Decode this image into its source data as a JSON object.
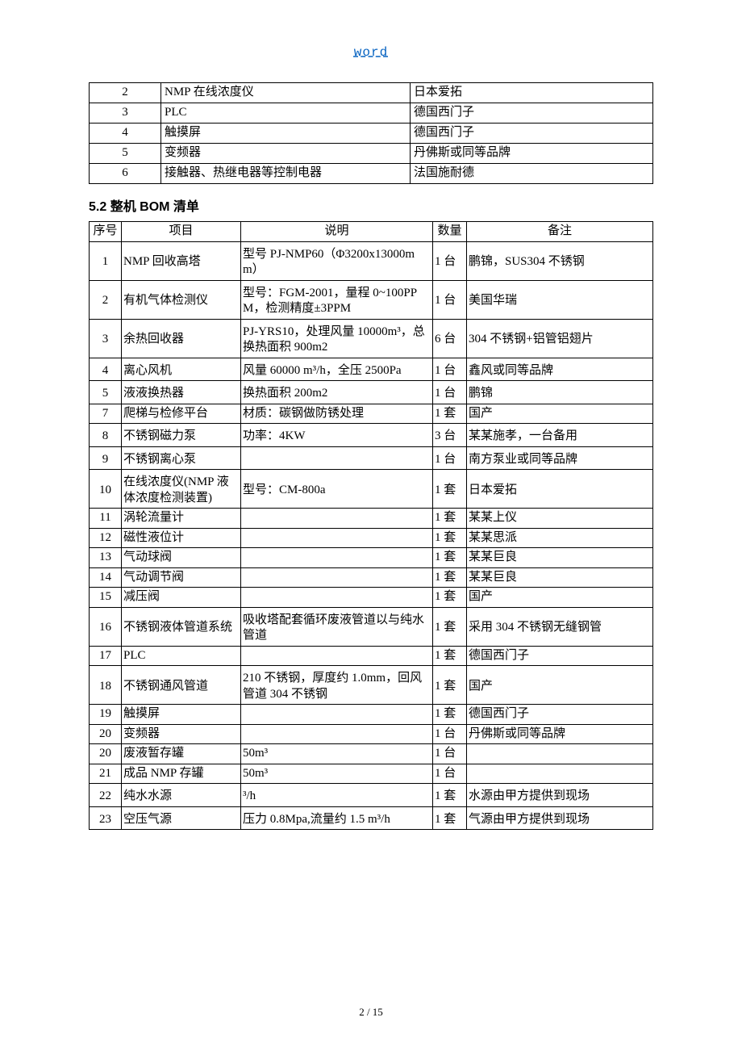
{
  "header": {
    "word": "word"
  },
  "table1": {
    "rows": [
      {
        "no": "2",
        "name": "NMP 在线浓度仪",
        "brand": "日本爱拓"
      },
      {
        "no": "3",
        "name": "PLC",
        "brand": "德国西门子"
      },
      {
        "no": "4",
        "name": "触摸屏",
        "brand": "德国西门子"
      },
      {
        "no": "5",
        "name": "变频器",
        "brand": "丹佛斯或同等品牌"
      },
      {
        "no": "6",
        "name": "接触器、热继电器等控制电器",
        "brand": "法国施耐德"
      }
    ]
  },
  "section52": {
    "title": "5.2 整机 BOM 清单"
  },
  "table2": {
    "header": {
      "no": "序号",
      "item": "项目",
      "desc": "说明",
      "qty": "数量",
      "rem": "备注"
    },
    "rows": [
      {
        "no": "1",
        "item": "NMP 回收高塔",
        "desc": "型号 PJ-NMP60（Φ3200x13000mm）",
        "qty": "1 台",
        "rem": "鹏锦，SUS304 不锈钢",
        "tall": true
      },
      {
        "no": "2",
        "item": "有机气体检测仪",
        "desc": "型号：FGM-2001，量程 0~100PPM，检测精度±3PPM",
        "qty": "1 台",
        "rem": "美国华瑞",
        "tall": true
      },
      {
        "no": "3",
        "item": "余热回收器",
        "desc": "PJ-YRS10，处理风量 10000m³，总换热面积 900m2",
        "qty": "6 台",
        "rem": "304 不锈钢+铝管铝翅片",
        "tall": true
      },
      {
        "no": "4",
        "item": "离心风机",
        "desc": "风量 60000 m³/h，全压 2500Pa",
        "qty": "1 台",
        "rem": "鑫风或同等品牌",
        "tall": true
      },
      {
        "no": "5",
        "item": "液液换热器",
        "desc": "换热面积 200m2",
        "qty": "1 台",
        "rem": "鹏锦",
        "tall": true
      },
      {
        "no": "7",
        "item": "爬梯与检修平台",
        "desc": "材质：碳钢做防锈处理",
        "qty": "1 套",
        "rem": "国产"
      },
      {
        "no": "8",
        "item": "不锈钢磁力泵",
        "desc": "功率：4KW",
        "qty": "3 台",
        "rem": "某某施孝，一台备用",
        "tall": true
      },
      {
        "no": "9",
        "item": "不锈钢离心泵",
        "desc": "",
        "qty": "1 台",
        "rem": "南方泵业或同等品牌",
        "tall": true
      },
      {
        "no": "10",
        "item": "在线浓度仪(NMP 液体浓度检测装置)",
        "desc": "型号：CM-800a",
        "qty": "1 套",
        "rem": "日本爱拓",
        "tall": true
      },
      {
        "no": "11",
        "item": "涡轮流量计",
        "desc": "",
        "qty": "1 套",
        "rem": "某某上仪"
      },
      {
        "no": "12",
        "item": "磁性液位计",
        "desc": "",
        "qty": "1 套",
        "rem": "某某思派"
      },
      {
        "no": "13",
        "item": "气动球阀",
        "desc": "",
        "qty": "1 套",
        "rem": "某某巨良"
      },
      {
        "no": "14",
        "item": "气动调节阀",
        "desc": "",
        "qty": "1 套",
        "rem": "某某巨良"
      },
      {
        "no": "15",
        "item": "减压阀",
        "desc": "",
        "qty": "1 套",
        "rem": "国产"
      },
      {
        "no": "16",
        "item": "不锈钢液体管道系统",
        "desc": "吸收塔配套循环废液管道以与纯水管道",
        "qty": "1 套",
        "rem": "采用 304 不锈钢无缝钢管",
        "tall": true
      },
      {
        "no": "17",
        "item": "PLC",
        "desc": "",
        "qty": "1 套",
        "rem": "德国西门子"
      },
      {
        "no": "18",
        "item": "不锈钢通风管道",
        "desc": "210 不锈钢，厚度约 1.0mm，回风管道 304 不锈钢",
        "qty": "1 套",
        "rem": "国产",
        "tall": true
      },
      {
        "no": "19",
        "item": "触摸屏",
        "desc": "",
        "qty": "1 套",
        "rem": "德国西门子"
      },
      {
        "no": "20",
        "item": "变频器",
        "desc": "",
        "qty": "1 台",
        "rem": "丹佛斯或同等品牌"
      },
      {
        "no": "20",
        "item": "废液暂存罐",
        "desc": "50m³",
        "qty": "1 台",
        "rem": ""
      },
      {
        "no": "21",
        "item": "成品 NMP 存罐",
        "desc": "50m³",
        "qty": "1 台",
        "rem": ""
      },
      {
        "no": "22",
        "item": "纯水水源",
        "desc": "³/h",
        "qty": "1 套",
        "rem": "水源由甲方提供到现场",
        "tall": true
      },
      {
        "no": "23",
        "item": "空压气源",
        "desc": "压力 0.8Mpa,流量约 1.5 m³/h",
        "qty": "1 套",
        "rem": "气源由甲方提供到现场",
        "tall": true
      }
    ]
  },
  "footer": {
    "text": "2 / 15"
  }
}
